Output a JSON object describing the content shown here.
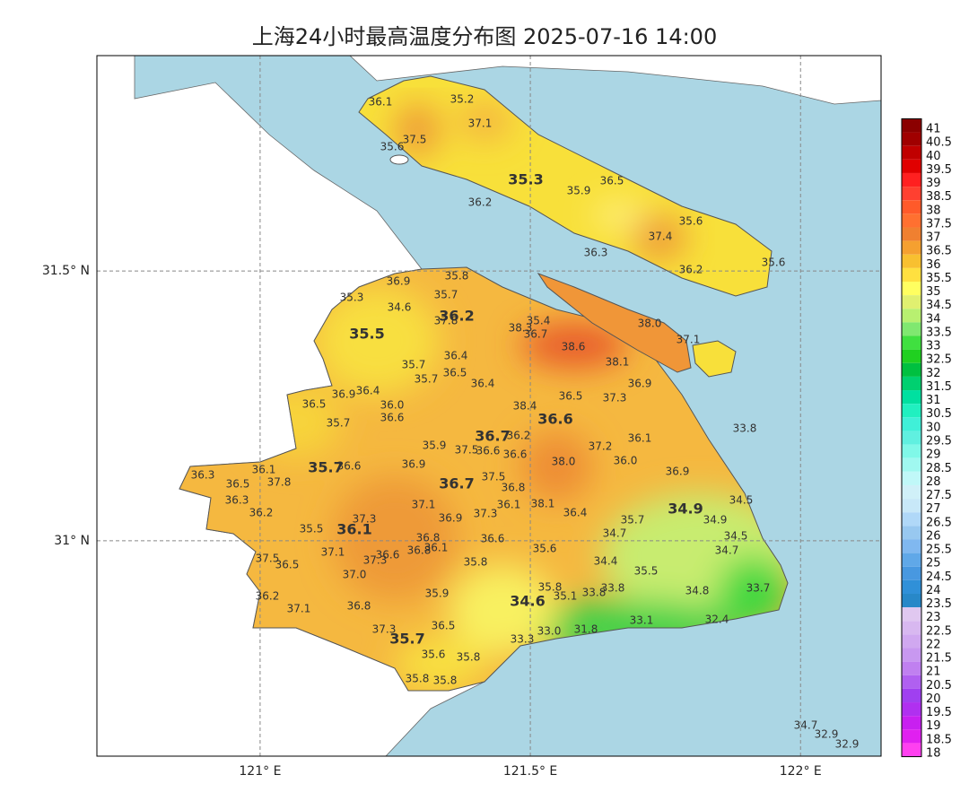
{
  "chart_data": {
    "type": "map",
    "title": "上海24小时最高温度分布图 2025-07-16 14:00",
    "xlim": [
      120.698,
      122.149
    ],
    "ylim": [
      30.601,
      31.899
    ],
    "xticks": [
      {
        "value": 121,
        "label": "121° E"
      },
      {
        "value": 121.5,
        "label": "121.5° E"
      },
      {
        "value": 122,
        "label": "122° E"
      }
    ],
    "yticks": [
      {
        "value": 31,
        "label": "31° N"
      },
      {
        "value": 31.5,
        "label": "31.5° N"
      }
    ],
    "grid": true,
    "value_labels": [
      "36.1",
      "35.2",
      "37.1",
      "37.5",
      "35.6",
      "36.5",
      "35.9",
      "36.2",
      "35.6",
      "37.4",
      "36.3",
      "36.2",
      "35.6",
      "38.0",
      "37.1",
      "35.8",
      "36.9",
      "35.7",
      "35.3",
      "34.6",
      "37.8",
      "35.4",
      "38.3",
      "36.7",
      "38.6",
      "38.1",
      "36.4",
      "35.7",
      "36.5",
      "35.7",
      "36.9",
      "36.4",
      "36.9",
      "36.4",
      "37.3",
      "36.5",
      "36.5",
      "36.0",
      "38.4",
      "36.6",
      "35.7",
      "33.8",
      "36.2",
      "35.9",
      "37.2",
      "36.1",
      "37.5",
      "36.6",
      "36.6",
      "36.3",
      "36.1",
      "36.6",
      "36.9",
      "38.0",
      "36.0",
      "36.9",
      "37.8",
      "36.5",
      "37.5",
      "36.8",
      "36.3",
      "37.1",
      "38.1",
      "34.5",
      "36.2",
      "36.1",
      "37.3",
      "36.4",
      "35.7",
      "34.9",
      "36.9",
      "37.3",
      "35.5",
      "34.7",
      "34.5",
      "36.8",
      "36.1",
      "36.6",
      "36.8",
      "35.6",
      "37.1",
      "34.7",
      "37.5",
      "36.6",
      "37.3",
      "34.4",
      "36.5",
      "35.8",
      "35.5",
      "37.0",
      "35.8",
      "33.8",
      "33.7",
      "34.8",
      "33.8",
      "36.2",
      "35.9",
      "35.1",
      "37.1",
      "36.8",
      "32.4",
      "33.1",
      "36.5",
      "37.3",
      "33.0",
      "31.8",
      "33.3",
      "35.6",
      "35.8",
      "35.8",
      "35.8",
      "34.7",
      "32.9",
      "32.9"
    ],
    "values": [
      36.1,
      35.2,
      37.1,
      37.5,
      35.6,
      36.5,
      35.9,
      36.2,
      35.6,
      37.4,
      36.3,
      36.2,
      35.6,
      38,
      37.1,
      35.8,
      36.9,
      35.7,
      35.3,
      34.6,
      37.8,
      35.4,
      38.3,
      36.7,
      38.6,
      38.1,
      36.4,
      35.7,
      36.5,
      35.7,
      36.9,
      36.4,
      36.9,
      36.4,
      37.3,
      36.5,
      36.5,
      36,
      38.4,
      36.6,
      35.7,
      33.8,
      36.2,
      35.9,
      37.2,
      36.1,
      37.5,
      36.6,
      36.6,
      36.3,
      36.1,
      36.6,
      36.9,
      38,
      36,
      36.9,
      37.8,
      36.5,
      37.5,
      36.8,
      36.3,
      37.1,
      38.1,
      34.5,
      36.2,
      36.1,
      37.3,
      36.4,
      35.7,
      34.9,
      36.9,
      37.3,
      35.5,
      34.7,
      34.5,
      36.8,
      36.1,
      36.6,
      36.8,
      35.6,
      37.1,
      34.7,
      37.5,
      36.6,
      37.3,
      34.4,
      36.5,
      35.8,
      35.5,
      37,
      35.8,
      33.8,
      33.7,
      34.8,
      33.8,
      36.2,
      35.9,
      35.1,
      37.1,
      36.8,
      32.4,
      33.1,
      36.5,
      37.3,
      33,
      31.8,
      33.3,
      35.6,
      35.8,
      35.8,
      35.8,
      34.7,
      32.9,
      32.9
    ],
    "district_values": [
      35.3,
      36.2,
      35.5,
      36.6,
      36.7,
      35.7,
      36.7,
      34.9,
      36.1,
      34.6,
      35.7
    ],
    "colorbar": {
      "lim": [
        18,
        41
      ],
      "ticks": [
        41,
        40.5,
        40,
        39.5,
        39,
        38.5,
        38,
        37.5,
        37,
        36.5,
        36,
        35.5,
        35,
        34.5,
        34,
        33.5,
        33,
        32.5,
        32,
        31.5,
        31,
        30.5,
        30,
        29.5,
        29,
        28.5,
        28,
        27.5,
        27,
        26.5,
        26,
        25.5,
        25,
        24.5,
        24,
        23.5,
        23,
        22.5,
        22,
        21.5,
        21,
        20.5,
        20,
        19.5,
        19,
        18.5,
        18
      ],
      "colors": [
        "#8b0000",
        "#a00000",
        "#c00000",
        "#e00000",
        "#ff2020",
        "#ff4030",
        "#ff5a2a",
        "#ff7030",
        "#f08030",
        "#f5a030",
        "#f8c030",
        "#ffe040",
        "#ffff60",
        "#e0f070",
        "#b8f070",
        "#80e870",
        "#40e040",
        "#20d020",
        "#00c040",
        "#00d070",
        "#00e0a0",
        "#20f0c0",
        "#40f0d8",
        "#60f0e0",
        "#80f8e8",
        "#a0f8f0",
        "#c0f8f8",
        "#d0f0f8",
        "#c8e8f8",
        "#b0d8f8",
        "#98c8f0",
        "#80b8f0",
        "#60a8e8",
        "#4898e0",
        "#3090d8",
        "#2888c8",
        "#e0c8f0",
        "#d8b8f0",
        "#d0a8f0",
        "#c898f0",
        "#c080f0",
        "#b060f0",
        "#a040f0",
        "#b030f0",
        "#c820f0",
        "#e020f0",
        "#ff40f0"
      ]
    }
  }
}
